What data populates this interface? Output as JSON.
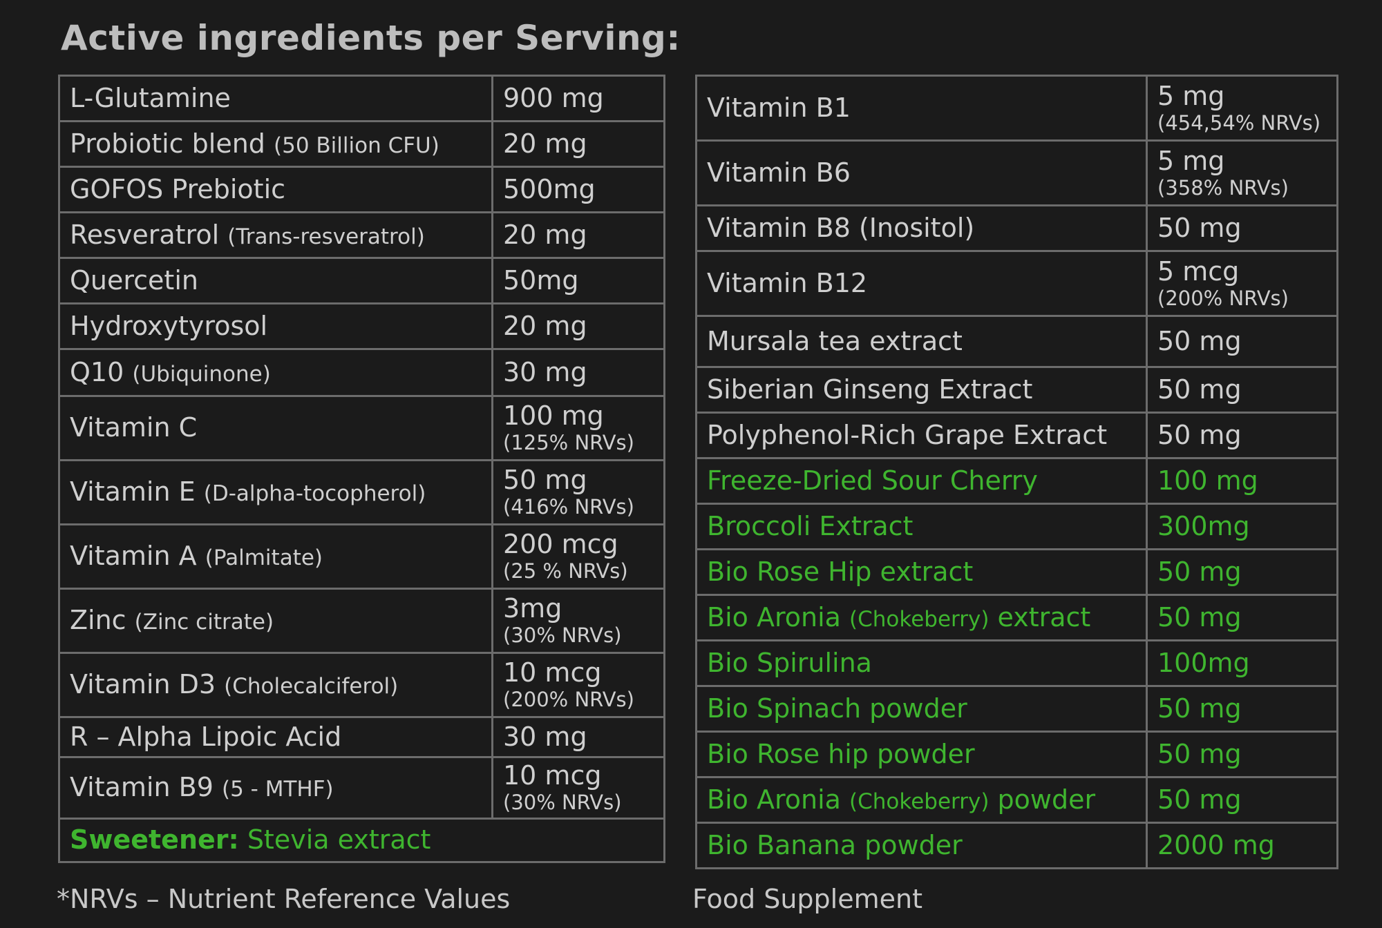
{
  "title": "Active ingredients per Serving:",
  "left_table": {
    "rows": [
      {
        "name": "L-Glutamine",
        "sub": "",
        "amount": "900 mg",
        "nrv": ""
      },
      {
        "name": "Probiotic blend",
        "sub": "(50 Billion CFU)",
        "amount": "20 mg",
        "nrv": ""
      },
      {
        "name": "GOFOS Prebiotic",
        "sub": "",
        "amount": "500mg",
        "nrv": ""
      },
      {
        "name": "Resveratrol",
        "sub": "(Trans-resveratrol)",
        "amount": "20 mg",
        "nrv": ""
      },
      {
        "name": "Quercetin",
        "sub": "",
        "amount": "50mg",
        "nrv": ""
      },
      {
        "name": "Hydroxytyrosol",
        "sub": "",
        "amount": "20 mg",
        "nrv": ""
      },
      {
        "name": "Q10",
        "sub": "(Ubiquinone)",
        "amount": "30 mg",
        "nrv": ""
      },
      {
        "name": "Vitamin C",
        "sub": "",
        "amount": "100 mg",
        "nrv": "(125% NRVs)"
      },
      {
        "name": "Vitamin E",
        "sub": "(D-alpha-tocopherol)",
        "amount": "50 mg",
        "nrv": "(416% NRVs)"
      },
      {
        "name": "Vitamin A",
        "sub": "(Palmitate)",
        "amount": "200 mcg",
        "nrv": "(25 % NRVs)"
      },
      {
        "name": "Zinc",
        "sub": "(Zinc citrate)",
        "amount": "3mg",
        "nrv": "(30% NRVs)"
      },
      {
        "name": "Vitamin D3",
        "sub": "(Cholecalciferol)",
        "amount": "10 mcg",
        "nrv": "(200% NRVs)"
      },
      {
        "name": "R – Alpha Lipoic Acid",
        "sub": "",
        "amount": "30 mg",
        "nrv": ""
      },
      {
        "name": "Vitamin B9",
        "sub": "(5 - MTHF)",
        "amount": "10 mcg",
        "nrv": "(30% NRVs)"
      }
    ],
    "sweetener_label": "Sweetener:",
    "sweetener_value": "Stevia extract"
  },
  "right_table": {
    "rows": [
      {
        "name": "Vitamin B1",
        "sub": "",
        "suffix": "",
        "amount": "5 mg",
        "nrv": "(454,54% NRVs)",
        "green": false
      },
      {
        "name": "Vitamin B6",
        "sub": "",
        "suffix": "",
        "amount": "5 mg",
        "nrv": "(358% NRVs)",
        "green": false
      },
      {
        "name": "Vitamin B8 (Inositol)",
        "sub": "",
        "suffix": "",
        "amount": "50 mg",
        "nrv": "",
        "green": false
      },
      {
        "name": "Vitamin B12",
        "sub": "",
        "suffix": "",
        "amount": "5 mcg",
        "nrv": "(200% NRVs)",
        "green": false
      },
      {
        "name": "Mursala tea extract",
        "sub": "",
        "suffix": "",
        "amount": "50 mg",
        "nrv": "",
        "green": false
      },
      {
        "name": "Siberian Ginseng Extract",
        "sub": "",
        "suffix": "",
        "amount": "50 mg",
        "nrv": "",
        "green": false
      },
      {
        "name": "Polyphenol-Rich Grape Extract",
        "sub": "",
        "suffix": "",
        "amount": "50 mg",
        "nrv": "",
        "green": false
      },
      {
        "name": "Freeze-Dried Sour Cherry",
        "sub": "",
        "suffix": "",
        "amount": "100 mg",
        "nrv": "",
        "green": true
      },
      {
        "name": "Broccoli Extract",
        "sub": "",
        "suffix": "",
        "amount": "300mg",
        "nrv": "",
        "green": true
      },
      {
        "name": "Bio Rose Hip extract",
        "sub": "",
        "suffix": "",
        "amount": "50 mg",
        "nrv": "",
        "green": true
      },
      {
        "name": "Bio Aronia",
        "sub": "(Chokeberry)",
        "suffix": "extract",
        "amount": "50 mg",
        "nrv": "",
        "green": true
      },
      {
        "name": "Bio Spirulina",
        "sub": "",
        "suffix": "",
        "amount": "100mg",
        "nrv": "",
        "green": true
      },
      {
        "name": "Bio Spinach powder",
        "sub": "",
        "suffix": "",
        "amount": "50 mg",
        "nrv": "",
        "green": true
      },
      {
        "name": "Bio Rose hip powder",
        "sub": "",
        "suffix": "",
        "amount": "50 mg",
        "nrv": "",
        "green": true
      },
      {
        "name": "Bio Aronia",
        "sub": "(Chokeberry)",
        "suffix": "powder",
        "amount": "50 mg",
        "nrv": "",
        "green": true
      },
      {
        "name": "Bio Banana powder",
        "sub": "",
        "suffix": "",
        "amount": "2000 mg",
        "nrv": "",
        "green": true
      }
    ]
  },
  "footnotes": {
    "nrv_note": "*NRVs – Nutrient Reference Values",
    "category": "Food Supplement"
  },
  "colors": {
    "background": "#1b1b1b",
    "text": "#cfcfcf",
    "accent_green": "#3fb52f",
    "border": "#6c6c6c"
  }
}
